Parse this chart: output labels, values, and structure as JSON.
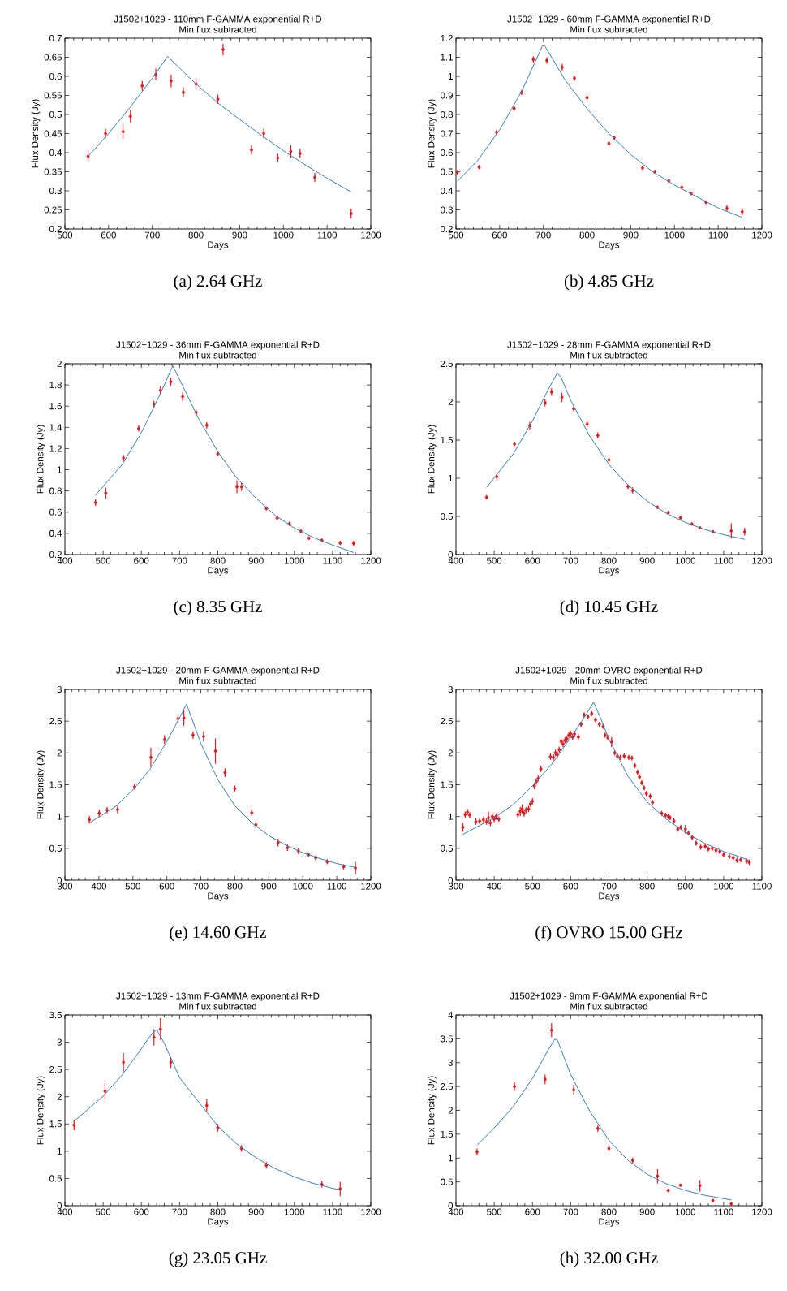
{
  "chart_data": [
    {
      "type": "scatter",
      "title": "J1502+1029 - 110mm F-GAMMA exponential R+D",
      "subtitle": "Min flux subtracted",
      "xlabel": "Days",
      "ylabel": "Flux Density (Jy)",
      "annotations": [
        "(a) 2.64 GHz"
      ],
      "xlim": [
        500,
        1200
      ],
      "ylim": [
        0.2,
        0.7
      ],
      "xticks": [
        500,
        600,
        700,
        800,
        900,
        1000,
        1100,
        1200
      ],
      "yticks": [
        0.2,
        0.25,
        0.3,
        0.35,
        0.4,
        0.45,
        0.5,
        0.55,
        0.6,
        0.65,
        0.7
      ],
      "series": [
        {
          "type": "scatter",
          "color": "#e31a1c",
          "marker": "circle",
          "x": [
            553,
            593,
            633,
            650,
            677,
            708,
            743,
            771,
            800,
            850,
            862,
            927,
            955,
            987,
            1017,
            1038,
            1072,
            1155
          ],
          "values": [
            0.39,
            0.45,
            0.455,
            0.495,
            0.575,
            0.605,
            0.588,
            0.558,
            0.58,
            0.54,
            0.67,
            0.407,
            0.45,
            0.386,
            0.403,
            0.398,
            0.335,
            0.24
          ],
          "errors": [
            0.015,
            0.012,
            0.02,
            0.017,
            0.013,
            0.015,
            0.017,
            0.013,
            0.015,
            0.012,
            0.015,
            0.012,
            0.012,
            0.012,
            0.017,
            0.012,
            0.012,
            0.013
          ]
        },
        {
          "type": "line",
          "color": "#3b7ebf",
          "marker": "none",
          "x": [
            553,
            600,
            650,
            700,
            735,
            800,
            850,
            900,
            950,
            1000,
            1050,
            1100,
            1155
          ],
          "values": [
            0.39,
            0.45,
            0.52,
            0.595,
            0.652,
            0.58,
            0.53,
            0.487,
            0.445,
            0.405,
            0.368,
            0.333,
            0.297
          ]
        }
      ]
    },
    {
      "type": "scatter",
      "title": "J1502+1029 - 60mm F-GAMMA exponential R+D",
      "subtitle": "Min flux subtracted",
      "xlabel": "Days",
      "ylabel": "Flux Density (Jy)",
      "annotations": [
        "(b) 4.85 GHz"
      ],
      "xlim": [
        500,
        1200
      ],
      "ylim": [
        0.2,
        1.2
      ],
      "xticks": [
        500,
        600,
        700,
        800,
        900,
        1000,
        1100,
        1200
      ],
      "yticks": [
        0.2,
        0.3,
        0.4,
        0.5,
        0.6,
        0.7,
        0.8,
        0.9,
        1,
        1.1,
        1.2
      ],
      "series": [
        {
          "type": "scatter",
          "color": "#e31a1c",
          "marker": "circle",
          "x": [
            503,
            553,
            593,
            633,
            650,
            677,
            708,
            743,
            771,
            800,
            850,
            862,
            927,
            955,
            987,
            1017,
            1038,
            1072,
            1120,
            1155
          ],
          "values": [
            0.497,
            0.524,
            0.707,
            0.832,
            0.915,
            1.088,
            1.083,
            1.048,
            0.99,
            0.888,
            0.648,
            0.678,
            0.52,
            0.5,
            0.452,
            0.418,
            0.386,
            0.34,
            0.308,
            0.29
          ],
          "errors": [
            0.012,
            0.012,
            0.013,
            0.013,
            0.013,
            0.017,
            0.017,
            0.017,
            0.013,
            0.013,
            0.01,
            0.01,
            0.01,
            0.01,
            0.01,
            0.01,
            0.01,
            0.01,
            0.017,
            0.017
          ]
        },
        {
          "type": "line",
          "color": "#3b7ebf",
          "marker": "none",
          "x": [
            503,
            550,
            600,
            650,
            680,
            698,
            703,
            750,
            800,
            850,
            900,
            950,
            1000,
            1050,
            1100,
            1155
          ],
          "values": [
            0.45,
            0.56,
            0.72,
            0.92,
            1.07,
            1.16,
            1.16,
            0.98,
            0.83,
            0.7,
            0.59,
            0.5,
            0.43,
            0.37,
            0.31,
            0.26
          ]
        }
      ]
    },
    {
      "type": "scatter",
      "title": "J1502+1029 - 36mm F-GAMMA exponential R+D",
      "subtitle": "Min flux subtracted",
      "xlabel": "Days",
      "ylabel": "Flux Density (Jy)",
      "annotations": [
        "(c) 8.35 GHz"
      ],
      "xlim": [
        400,
        1200
      ],
      "ylim": [
        0.2,
        2
      ],
      "xticks": [
        400,
        500,
        600,
        700,
        800,
        900,
        1000,
        1100,
        1200
      ],
      "yticks": [
        0.2,
        0.4,
        0.6,
        0.8,
        1,
        1.2,
        1.4,
        1.6,
        1.8,
        2
      ],
      "series": [
        {
          "type": "scatter",
          "color": "#e31a1c",
          "marker": "circle",
          "x": [
            480,
            507,
            553,
            593,
            633,
            650,
            677,
            708,
            743,
            771,
            800,
            850,
            862,
            927,
            955,
            987,
            1017,
            1038,
            1072,
            1120,
            1155
          ],
          "values": [
            0.69,
            0.78,
            1.11,
            1.39,
            1.62,
            1.75,
            1.83,
            1.69,
            1.54,
            1.42,
            1.15,
            0.84,
            0.84,
            0.635,
            0.545,
            0.49,
            0.42,
            0.355,
            0.335,
            0.31,
            0.305
          ],
          "errors": [
            0.03,
            0.05,
            0.03,
            0.03,
            0.03,
            0.04,
            0.04,
            0.04,
            0.03,
            0.03,
            0.02,
            0.06,
            0.04,
            0.02,
            0.02,
            0.02,
            0.02,
            0.015,
            0.015,
            0.02,
            0.025
          ]
        },
        {
          "type": "line",
          "color": "#3b7ebf",
          "marker": "none",
          "x": [
            480,
            550,
            600,
            650,
            682,
            700,
            750,
            800,
            850,
            900,
            950,
            1000,
            1050,
            1100,
            1155
          ],
          "values": [
            0.76,
            1.05,
            1.35,
            1.72,
            1.98,
            1.85,
            1.48,
            1.17,
            0.92,
            0.73,
            0.57,
            0.45,
            0.36,
            0.29,
            0.22
          ]
        }
      ]
    },
    {
      "type": "scatter",
      "title": "J1502+1029 - 28mm F-GAMMA exponential R+D",
      "subtitle": "Min flux subtracted",
      "xlabel": "Days",
      "ylabel": "Flux Density (Jy)",
      "annotations": [
        "(d) 10.45 GHz"
      ],
      "xlim": [
        400,
        1200
      ],
      "ylim": [
        0,
        2.5
      ],
      "xticks": [
        400,
        500,
        600,
        700,
        800,
        900,
        1000,
        1100,
        1200
      ],
      "yticks": [
        0,
        0.5,
        1,
        1.5,
        2,
        2.5
      ],
      "series": [
        {
          "type": "scatter",
          "color": "#e31a1c",
          "marker": "circle",
          "x": [
            480,
            507,
            553,
            593,
            633,
            650,
            677,
            708,
            743,
            771,
            800,
            850,
            862,
            927,
            955,
            987,
            1017,
            1038,
            1072,
            1120,
            1155
          ],
          "values": [
            0.75,
            1.02,
            1.45,
            1.69,
            1.99,
            2.13,
            2.06,
            1.91,
            1.71,
            1.56,
            1.24,
            0.89,
            0.84,
            0.62,
            0.55,
            0.48,
            0.4,
            0.35,
            0.3,
            0.31,
            0.3
          ],
          "errors": [
            0.03,
            0.05,
            0.03,
            0.05,
            0.05,
            0.05,
            0.06,
            0.04,
            0.04,
            0.04,
            0.03,
            0.03,
            0.04,
            0.02,
            0.02,
            0.02,
            0.02,
            0.02,
            0.02,
            0.1,
            0.05
          ]
        },
        {
          "type": "line",
          "color": "#3b7ebf",
          "marker": "none",
          "x": [
            480,
            550,
            600,
            640,
            665,
            675,
            700,
            750,
            800,
            850,
            900,
            950,
            1000,
            1050,
            1100,
            1155
          ],
          "values": [
            0.88,
            1.32,
            1.75,
            2.15,
            2.38,
            2.32,
            2.02,
            1.55,
            1.18,
            0.91,
            0.7,
            0.54,
            0.42,
            0.33,
            0.26,
            0.2
          ]
        }
      ]
    },
    {
      "type": "scatter",
      "title": "J1502+1029 - 20mm F-GAMMA exponential R+D",
      "subtitle": "Min flux subtracted",
      "xlabel": "Days",
      "ylabel": "Flux Density (Jy)",
      "annotations": [
        "(e) 14.60 GHz"
      ],
      "xlim": [
        300,
        1200
      ],
      "ylim": [
        0,
        3
      ],
      "xticks": [
        300,
        400,
        500,
        600,
        700,
        800,
        900,
        1000,
        1100,
        1200
      ],
      "yticks": [
        0,
        0.5,
        1,
        1.5,
        2,
        2.5,
        3
      ],
      "series": [
        {
          "type": "scatter",
          "color": "#e31a1c",
          "marker": "circle",
          "x": [
            372,
            401,
            424,
            455,
            505,
            553,
            593,
            633,
            650,
            677,
            708,
            743,
            771,
            800,
            850,
            862,
            927,
            955,
            987,
            1017,
            1038,
            1072,
            1120,
            1155
          ],
          "values": [
            0.95,
            1.05,
            1.1,
            1.11,
            1.47,
            1.93,
            2.21,
            2.54,
            2.55,
            2.28,
            2.26,
            2.03,
            1.69,
            1.44,
            1.06,
            0.87,
            0.59,
            0.51,
            0.46,
            0.4,
            0.35,
            0.29,
            0.21,
            0.19
          ],
          "errors": [
            0.06,
            0.06,
            0.05,
            0.06,
            0.05,
            0.15,
            0.07,
            0.07,
            0.12,
            0.06,
            0.08,
            0.2,
            0.07,
            0.05,
            0.05,
            0.05,
            0.06,
            0.05,
            0.05,
            0.03,
            0.04,
            0.04,
            0.04,
            0.1
          ]
        },
        {
          "type": "line",
          "color": "#3b7ebf",
          "marker": "none",
          "x": [
            372,
            450,
            500,
            550,
            600,
            640,
            658,
            700,
            750,
            800,
            850,
            900,
            950,
            1000,
            1050,
            1100,
            1155
          ],
          "values": [
            0.9,
            1.16,
            1.42,
            1.74,
            2.18,
            2.58,
            2.77,
            2.15,
            1.58,
            1.17,
            0.9,
            0.7,
            0.55,
            0.43,
            0.34,
            0.26,
            0.2
          ]
        }
      ]
    },
    {
      "type": "scatter",
      "title": "J1502+1029 - 20mm OVRO exponential R+D",
      "subtitle": "Min flux subtracted",
      "xlabel": "Days",
      "ylabel": "Flux Density (Jy)",
      "annotations": [
        "(f) OVRO 15.00 GHz"
      ],
      "xlim": [
        300,
        1100
      ],
      "ylim": [
        0,
        3
      ],
      "xticks": [
        300,
        400,
        500,
        600,
        700,
        800,
        900,
        1000,
        1100
      ],
      "yticks": [
        0,
        0.5,
        1,
        1.5,
        2,
        2.5,
        3
      ],
      "series": [
        {
          "type": "scatter",
          "color": "#e31a1c",
          "marker": "circle",
          "x": [
            318,
            324,
            330,
            336,
            352,
            362,
            372,
            380,
            385,
            390,
            395,
            400,
            405,
            412,
            462,
            468,
            473,
            478,
            483,
            490,
            495,
            500,
            505,
            510,
            515,
            522,
            547,
            555,
            560,
            565,
            570,
            575,
            580,
            585,
            590,
            595,
            600,
            605,
            610,
            620,
            627,
            635,
            645,
            655,
            665,
            675,
            685,
            690,
            697,
            707,
            715,
            722,
            730,
            740,
            752,
            760,
            768,
            775,
            780,
            786,
            792,
            798,
            808,
            814,
            838,
            848,
            855,
            860,
            870,
            880,
            888,
            900,
            908,
            918,
            928,
            940,
            952,
            960,
            970,
            980,
            990,
            1000,
            1015,
            1025,
            1035,
            1045,
            1060,
            1067
          ],
          "values": [
            0.83,
            1.03,
            1.07,
            1.02,
            0.92,
            0.93,
            0.95,
            0.92,
            0.98,
            0.9,
            1.0,
            0.96,
            1.0,
            0.96,
            1.03,
            1.08,
            1.12,
            1.05,
            1.1,
            1.12,
            1.2,
            1.24,
            1.48,
            1.55,
            1.6,
            1.75,
            1.94,
            1.93,
            2.0,
            1.97,
            2.05,
            2.18,
            2.14,
            2.2,
            2.22,
            2.28,
            2.3,
            2.25,
            2.3,
            2.25,
            2.45,
            2.6,
            2.57,
            2.62,
            2.52,
            2.45,
            2.42,
            2.28,
            2.24,
            2.17,
            2.0,
            1.95,
            1.93,
            1.95,
            1.93,
            1.92,
            1.8,
            1.7,
            1.62,
            1.53,
            1.45,
            1.36,
            1.32,
            1.22,
            1.05,
            1.02,
            1.0,
            0.98,
            0.93,
            0.8,
            0.83,
            0.8,
            0.74,
            0.67,
            0.58,
            0.52,
            0.53,
            0.49,
            0.5,
            0.47,
            0.45,
            0.4,
            0.37,
            0.35,
            0.31,
            0.32,
            0.3,
            0.28
          ],
          "errors": [
            0.07,
            0.05,
            0.05,
            0.05,
            0.05,
            0.05,
            0.05,
            0.05,
            0.1,
            0.05,
            0.05,
            0.05,
            0.05,
            0.04,
            0.05,
            0.07,
            0.07,
            0.05,
            0.05,
            0.05,
            0.05,
            0.05,
            0.05,
            0.05,
            0.05,
            0.05,
            0.05,
            0.05,
            0.05,
            0.05,
            0.05,
            0.05,
            0.05,
            0.05,
            0.05,
            0.05,
            0.05,
            0.05,
            0.05,
            0.05,
            0.04,
            0.04,
            0.04,
            0.04,
            0.04,
            0.04,
            0.04,
            0.04,
            0.04,
            0.08,
            0.04,
            0.04,
            0.04,
            0.04,
            0.04,
            0.04,
            0.04,
            0.04,
            0.04,
            0.04,
            0.04,
            0.04,
            0.04,
            0.04,
            0.04,
            0.04,
            0.04,
            0.04,
            0.04,
            0.04,
            0.04,
            0.07,
            0.04,
            0.04,
            0.04,
            0.04,
            0.04,
            0.04,
            0.04,
            0.04,
            0.04,
            0.04,
            0.04,
            0.04,
            0.04,
            0.04,
            0.04,
            0.04
          ]
        },
        {
          "type": "line",
          "color": "#3b7ebf",
          "marker": "none",
          "x": [
            318,
            400,
            450,
            500,
            550,
            600,
            640,
            660,
            680,
            700,
            750,
            800,
            850,
            900,
            950,
            1000,
            1040,
            1067
          ],
          "values": [
            0.72,
            0.98,
            1.19,
            1.48,
            1.82,
            2.24,
            2.6,
            2.8,
            2.52,
            2.22,
            1.63,
            1.23,
            0.96,
            0.75,
            0.58,
            0.45,
            0.37,
            0.31
          ]
        }
      ]
    },
    {
      "type": "scatter",
      "title": "J1502+1029 - 13mm F-GAMMA exponential R+D",
      "subtitle": "Min flux subtracted",
      "xlabel": "Days",
      "ylabel": "Flux Density (Jy)",
      "annotations": [
        "(g) 23.05 GHz"
      ],
      "xlim": [
        400,
        1200
      ],
      "ylim": [
        0,
        3.5
      ],
      "xticks": [
        400,
        500,
        600,
        700,
        800,
        900,
        1000,
        1100,
        1200
      ],
      "yticks": [
        0,
        0.5,
        1,
        1.5,
        2,
        2.5,
        3,
        3.5
      ],
      "series": [
        {
          "type": "scatter",
          "color": "#e31a1c",
          "marker": "circle",
          "x": [
            424,
            505,
            553,
            633,
            650,
            677,
            771,
            800,
            862,
            927,
            1072,
            1120
          ],
          "values": [
            1.48,
            2.1,
            2.63,
            3.09,
            3.24,
            2.63,
            1.84,
            1.43,
            1.05,
            0.74,
            0.39,
            0.31
          ],
          "errors": [
            0.1,
            0.15,
            0.17,
            0.15,
            0.2,
            0.1,
            0.11,
            0.07,
            0.06,
            0.06,
            0.06,
            0.13
          ]
        },
        {
          "type": "line",
          "color": "#3b7ebf",
          "marker": "none",
          "x": [
            424,
            500,
            550,
            600,
            630,
            640,
            660,
            700,
            750,
            800,
            850,
            900,
            950,
            1000,
            1050,
            1100,
            1120
          ],
          "values": [
            1.55,
            2.01,
            2.4,
            2.88,
            3.18,
            3.23,
            2.98,
            2.35,
            1.9,
            1.46,
            1.13,
            0.88,
            0.68,
            0.53,
            0.41,
            0.32,
            0.29
          ]
        }
      ]
    },
    {
      "type": "scatter",
      "title": "J1502+1029 - 9mm F-GAMMA exponential R+D",
      "subtitle": "Min flux subtracted",
      "xlabel": "Days",
      "ylabel": "Flux Density (Jy)",
      "annotations": [
        "(h) 32.00 GHz"
      ],
      "xlim": [
        400,
        1200
      ],
      "ylim": [
        0,
        4
      ],
      "xticks": [
        400,
        500,
        600,
        700,
        800,
        900,
        1000,
        1100,
        1200
      ],
      "yticks": [
        0,
        0.5,
        1,
        1.5,
        2,
        2.5,
        3,
        3.5,
        4
      ],
      "series": [
        {
          "type": "scatter",
          "color": "#e31a1c",
          "marker": "circle",
          "x": [
            455,
            553,
            633,
            650,
            708,
            771,
            800,
            862,
            927,
            955,
            987,
            1038,
            1072,
            1120
          ],
          "values": [
            1.13,
            2.5,
            2.65,
            3.68,
            2.43,
            1.62,
            1.2,
            0.95,
            0.62,
            0.32,
            0.43,
            0.42,
            0.11,
            0.04
          ],
          "errors": [
            0.07,
            0.09,
            0.1,
            0.15,
            0.1,
            0.07,
            0.06,
            0.06,
            0.15,
            0.03,
            0.03,
            0.12,
            0.03,
            0.03
          ]
        },
        {
          "type": "line",
          "color": "#3b7ebf",
          "marker": "none",
          "x": [
            455,
            500,
            550,
            600,
            640,
            658,
            665,
            700,
            750,
            800,
            850,
            900,
            950,
            1000,
            1050,
            1100,
            1120
          ],
          "values": [
            1.27,
            1.63,
            2.08,
            2.67,
            3.25,
            3.49,
            3.48,
            2.75,
            1.98,
            1.37,
            0.95,
            0.66,
            0.46,
            0.32,
            0.22,
            0.15,
            0.12
          ]
        }
      ]
    }
  ]
}
